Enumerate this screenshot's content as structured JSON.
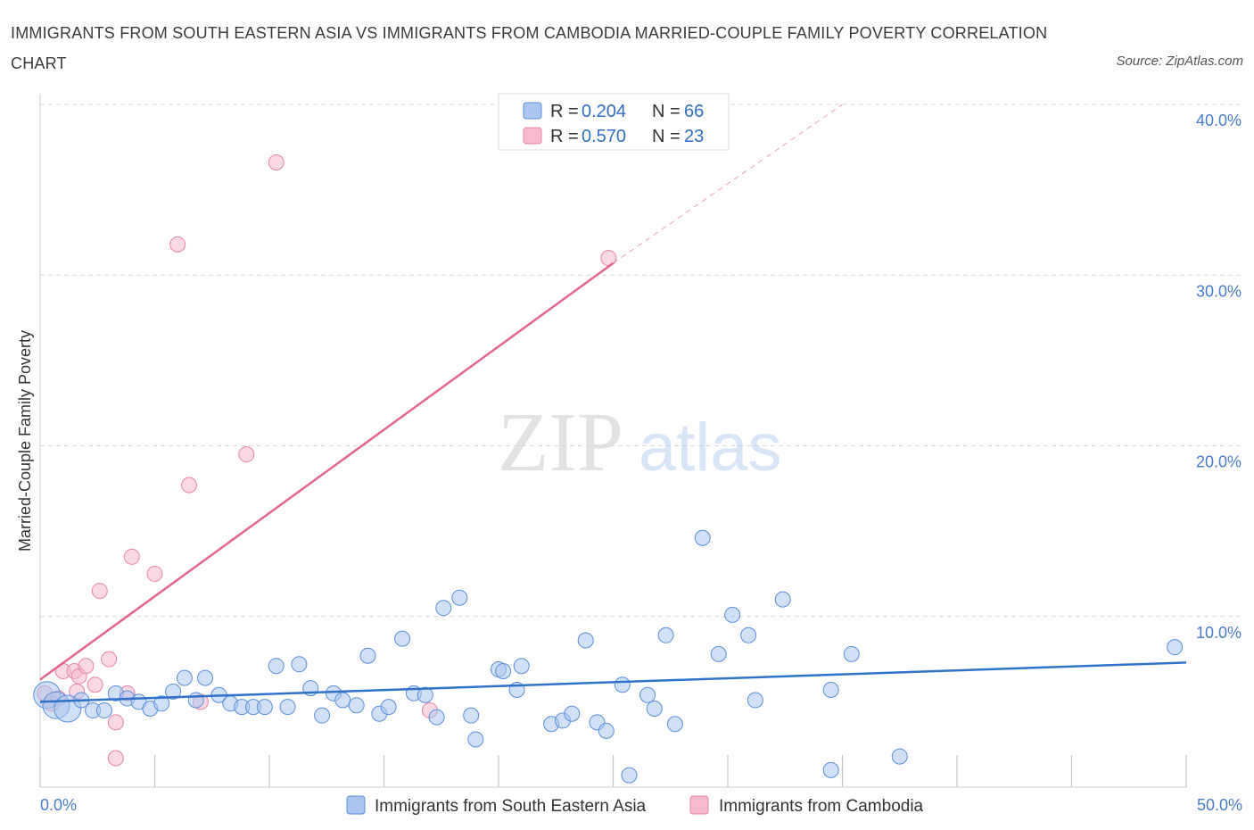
{
  "title": "IMMIGRANTS FROM SOUTH EASTERN ASIA VS IMMIGRANTS FROM CAMBODIA MARRIED-COUPLE FAMILY POVERTY CORRELATION CHART",
  "source": "Source: ZipAtlas.com",
  "watermark": {
    "zip": "ZIP",
    "atlas": "atlas"
  },
  "colors": {
    "blue": "#5b8fd9",
    "blue_fill": "#a9c6ef",
    "blue_line": "#2f72c9",
    "pink": "#e884a8",
    "pink_fill": "#f6b9cd",
    "pink_line": "#e2648f",
    "grid": "#d8d8d8",
    "axis_label": "#4a7cc9"
  },
  "chart_data": {
    "type": "scatter",
    "xlabel": "",
    "ylabel": "Married-Couple Family Poverty",
    "xlim": [
      0,
      50
    ],
    "ylim": [
      0,
      40
    ],
    "x_tick_labels": [
      "0.0%",
      "50.0%"
    ],
    "y_ticks": [
      10,
      20,
      30,
      40
    ],
    "y_tick_labels": [
      "10.0%",
      "20.0%",
      "30.0%",
      "40.0%"
    ],
    "legend": [
      {
        "r_label": "R = ",
        "r_value": "0.204",
        "n_label": "N = ",
        "n_value": "66"
      },
      {
        "r_label": "R = ",
        "r_value": "0.570",
        "n_label": "N = ",
        "n_value": "23"
      }
    ],
    "series": [
      {
        "name": "Immigrants from South Eastern Asia",
        "color": "#5b8fd9",
        "trend": {
          "x": [
            0,
            50
          ],
          "y": [
            5.0,
            7.3
          ]
        },
        "points": [
          {
            "x": 0.3,
            "y": 5.4,
            "big": true
          },
          {
            "x": 0.7,
            "y": 4.8,
            "big": true
          },
          {
            "x": 1.2,
            "y": 4.6,
            "big": true
          },
          {
            "x": 1.8,
            "y": 5.1
          },
          {
            "x": 2.3,
            "y": 4.5
          },
          {
            "x": 2.8,
            "y": 4.5
          },
          {
            "x": 3.3,
            "y": 5.5
          },
          {
            "x": 3.8,
            "y": 5.2
          },
          {
            "x": 4.3,
            "y": 5.0
          },
          {
            "x": 4.8,
            "y": 4.6
          },
          {
            "x": 5.3,
            "y": 4.9
          },
          {
            "x": 5.8,
            "y": 5.6
          },
          {
            "x": 6.3,
            "y": 6.4
          },
          {
            "x": 6.8,
            "y": 5.1
          },
          {
            "x": 7.2,
            "y": 6.4
          },
          {
            "x": 7.8,
            "y": 5.4
          },
          {
            "x": 8.3,
            "y": 4.9
          },
          {
            "x": 8.8,
            "y": 4.7
          },
          {
            "x": 9.3,
            "y": 4.7
          },
          {
            "x": 9.8,
            "y": 4.7
          },
          {
            "x": 10.3,
            "y": 7.1
          },
          {
            "x": 10.8,
            "y": 4.7
          },
          {
            "x": 11.3,
            "y": 7.2
          },
          {
            "x": 11.8,
            "y": 5.8
          },
          {
            "x": 12.3,
            "y": 4.2
          },
          {
            "x": 12.8,
            "y": 5.5
          },
          {
            "x": 13.2,
            "y": 5.1
          },
          {
            "x": 13.8,
            "y": 4.8
          },
          {
            "x": 14.3,
            "y": 7.7
          },
          {
            "x": 14.8,
            "y": 4.3
          },
          {
            "x": 15.2,
            "y": 4.7
          },
          {
            "x": 15.8,
            "y": 8.7
          },
          {
            "x": 16.3,
            "y": 5.5
          },
          {
            "x": 16.8,
            "y": 5.4
          },
          {
            "x": 17.3,
            "y": 4.1
          },
          {
            "x": 17.6,
            "y": 10.5
          },
          {
            "x": 18.3,
            "y": 11.1
          },
          {
            "x": 18.8,
            "y": 4.2
          },
          {
            "x": 19.0,
            "y": 2.8
          },
          {
            "x": 20.0,
            "y": 6.9
          },
          {
            "x": 20.2,
            "y": 6.8
          },
          {
            "x": 20.8,
            "y": 5.7
          },
          {
            "x": 21.0,
            "y": 7.1
          },
          {
            "x": 22.3,
            "y": 3.7
          },
          {
            "x": 22.8,
            "y": 3.9
          },
          {
            "x": 23.2,
            "y": 4.3
          },
          {
            "x": 23.8,
            "y": 8.6
          },
          {
            "x": 24.3,
            "y": 3.8
          },
          {
            "x": 24.7,
            "y": 3.3
          },
          {
            "x": 25.4,
            "y": 6.0
          },
          {
            "x": 25.7,
            "y": 0.7
          },
          {
            "x": 26.5,
            "y": 5.4
          },
          {
            "x": 26.8,
            "y": 4.6
          },
          {
            "x": 27.3,
            "y": 8.9
          },
          {
            "x": 27.7,
            "y": 3.7
          },
          {
            "x": 28.9,
            "y": 14.6
          },
          {
            "x": 29.6,
            "y": 7.8
          },
          {
            "x": 30.2,
            "y": 10.1
          },
          {
            "x": 31.2,
            "y": 5.1
          },
          {
            "x": 30.9,
            "y": 8.9
          },
          {
            "x": 32.4,
            "y": 11.0
          },
          {
            "x": 34.5,
            "y": 5.7
          },
          {
            "x": 34.5,
            "y": 1.0
          },
          {
            "x": 35.4,
            "y": 7.8
          },
          {
            "x": 37.5,
            "y": 1.8
          },
          {
            "x": 49.5,
            "y": 8.2
          }
        ]
      },
      {
        "name": "Immigrants from Cambodia",
        "color": "#e884a8",
        "trend": {
          "x": [
            0,
            25
          ],
          "y": [
            6.3,
            30.7
          ]
        },
        "trend_dashed": {
          "x": [
            25,
            35
          ],
          "y": [
            30.7,
            40.0
          ]
        },
        "points": [
          {
            "x": 0.2,
            "y": 5.5
          },
          {
            "x": 0.5,
            "y": 4.9
          },
          {
            "x": 1.0,
            "y": 6.8
          },
          {
            "x": 1.5,
            "y": 6.8
          },
          {
            "x": 1.7,
            "y": 6.5
          },
          {
            "x": 2.0,
            "y": 7.1
          },
          {
            "x": 2.4,
            "y": 6.0
          },
          {
            "x": 2.6,
            "y": 11.5
          },
          {
            "x": 3.0,
            "y": 7.5
          },
          {
            "x": 3.3,
            "y": 3.8
          },
          {
            "x": 3.3,
            "y": 1.7
          },
          {
            "x": 3.8,
            "y": 5.5
          },
          {
            "x": 4.0,
            "y": 13.5
          },
          {
            "x": 5.0,
            "y": 12.5
          },
          {
            "x": 6.0,
            "y": 31.8
          },
          {
            "x": 6.5,
            "y": 17.7
          },
          {
            "x": 7.0,
            "y": 5.0
          },
          {
            "x": 9.0,
            "y": 19.5
          },
          {
            "x": 10.3,
            "y": 36.6
          },
          {
            "x": 17.0,
            "y": 4.5
          },
          {
            "x": 24.8,
            "y": 31.0
          },
          {
            "x": 1.6,
            "y": 5.6
          },
          {
            "x": 0.8,
            "y": 5.2
          }
        ]
      }
    ]
  }
}
